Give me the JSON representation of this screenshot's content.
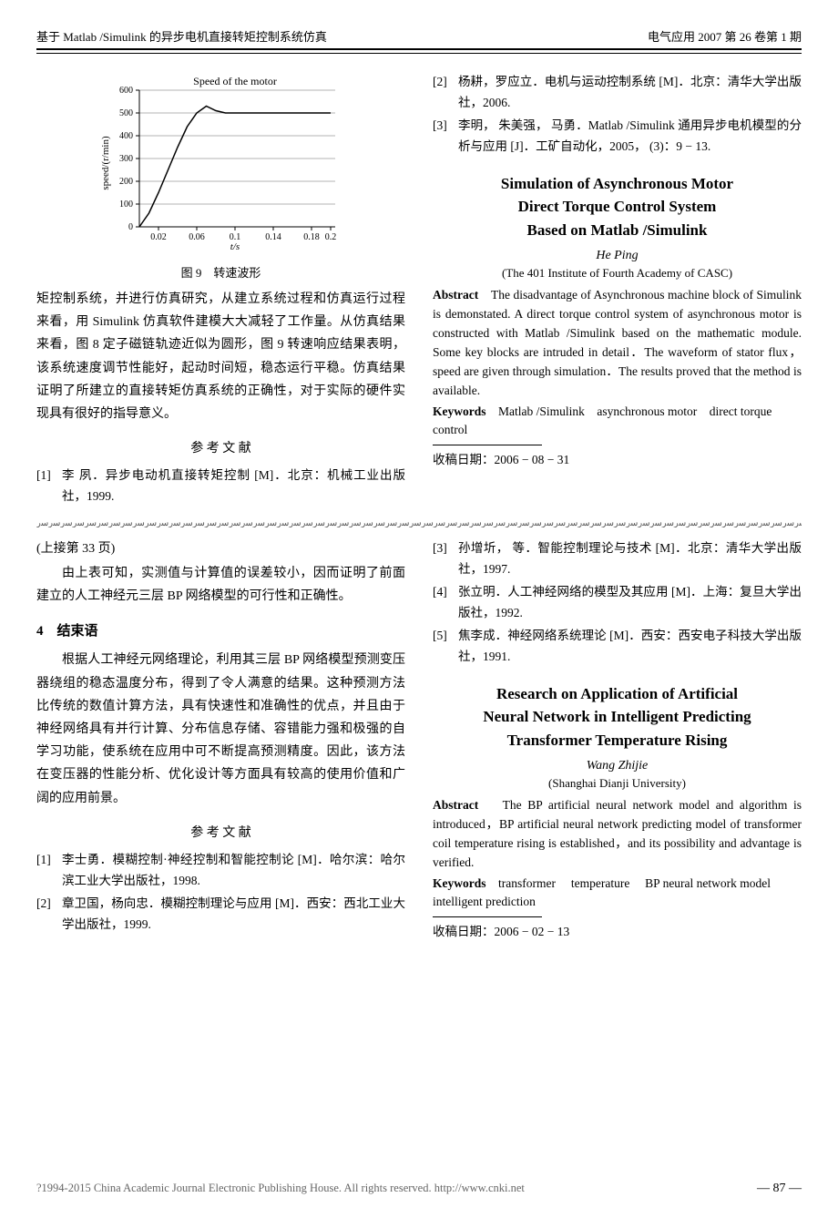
{
  "header": {
    "left": "基于 Matlab /Simulink 的异步电机直接转矩控制系统仿真",
    "right": "电气应用  2007 第 26 卷第 1 期"
  },
  "chart": {
    "type": "line",
    "title": "Speed of the motor",
    "xlabel": "t/s",
    "ylabel": "speed/(r/min)",
    "xlim": [
      0,
      0.2
    ],
    "ylim": [
      0,
      600
    ],
    "xticks": [
      0.02,
      0.06,
      0.1,
      0.14,
      0.18,
      0.2
    ],
    "yticks": [
      0,
      100,
      200,
      300,
      400,
      500,
      600
    ],
    "series": {
      "color": "#000000",
      "points": [
        [
          0,
          0
        ],
        [
          0.01,
          60
        ],
        [
          0.02,
          150
        ],
        [
          0.03,
          250
        ],
        [
          0.04,
          350
        ],
        [
          0.05,
          440
        ],
        [
          0.06,
          500
        ],
        [
          0.07,
          530
        ],
        [
          0.08,
          510
        ],
        [
          0.09,
          500
        ],
        [
          0.1,
          500
        ],
        [
          0.12,
          500
        ],
        [
          0.15,
          500
        ],
        [
          0.2,
          500
        ]
      ]
    },
    "background_color": "#ffffff",
    "axis_color": "#000000",
    "title_fontsize": 12,
    "label_fontsize": 11,
    "tick_fontsize": 10
  },
  "fig_caption": "图 9　转速波形",
  "article1": {
    "body": "矩控制系统，并进行仿真研究，从建立系统过程和仿真运行过程来看，用 Simulink 仿真软件建模大大减轻了工作量。从仿真结果来看，图 8 定子磁链轨迹近似为圆形，图 9 转速响应结果表明，该系统速度调节性能好，起动时间短，稳态运行平稳。仿真结果证明了所建立的直接转矩仿真系统的正确性，对于实际的硬件实现具有很好的指导意义。",
    "ref_heading": "参 考 文 献",
    "refs": [
      {
        "num": "[1]",
        "text": "李  夙．异步电动机直接转矩控制  [M]．北京：机械工业出版社，1999."
      },
      {
        "num": "[2]",
        "text": "杨耕，罗应立．电机与运动控制系统  [M]．北京：清华大学出版社，2006."
      },
      {
        "num": "[3]",
        "text": "李明， 朱美强， 马勇．Matlab /Simulink 通用异步电机模型的分析与应用  [J]．工矿自动化，2005，  (3)：9 − 13."
      }
    ],
    "en_title_l1": "Simulation of Asynchronous Motor",
    "en_title_l2": "Direct Torque Control System",
    "en_title_l3": "Based on Matlab /Simulink",
    "en_author": "He Ping",
    "en_affil": "(The 401 Institute of Fourth Academy of CASC)",
    "en_abstract_label": "Abstract",
    "en_abstract": "　The disadvantage of Asynchronous machine block of Simulink is demonstated. A direct torque control system of asynchronous motor is constructed with Matlab /Simulink based on the mathematic module. Some key blocks are intruded in detail．The waveform of stator flux，speed are given through simulation．The results proved that the method is available.",
    "en_keywords_label": "Keywords",
    "en_keywords": "　Matlab /Simulink　asynchronous motor　direct torque control",
    "recv_date": "收稿日期：2006 − 08 − 31"
  },
  "article2": {
    "cont_note": "(上接第 33 页)",
    "body1": "由上表可知，实测值与计算值的误差较小，因而证明了前面建立的人工神经元三层 BP 网络模型的可行性和正确性。",
    "sec_heading": "4　结束语",
    "body2": "根据人工神经元网络理论，利用其三层 BP 网络模型预测变压器绕组的稳态温度分布，得到了令人满意的结果。这种预测方法比传统的数值计算方法，具有快速性和准确性的优点，并且由于神经网络具有并行计算、分布信息存储、容错能力强和极强的自学习功能，使系统在应用中可不断提高预测精度。因此，该方法在变压器的性能分析、优化设计等方面具有较高的使用价值和广阔的应用前景。",
    "ref_heading": "参 考 文 献",
    "refs_left": [
      {
        "num": "[1]",
        "text": "李士勇．模糊控制·神经控制和智能控制论  [M]．哈尔滨：哈尔滨工业大学出版社，1998."
      },
      {
        "num": "[2]",
        "text": "章卫国，杨向忠．模糊控制理论与应用  [M]．西安：西北工业大学出版社，1999."
      }
    ],
    "refs_right": [
      {
        "num": "[3]",
        "text": "孙增圻， 等．智能控制理论与技术  [M]．北京：清华大学出版社，1997."
      },
      {
        "num": "[4]",
        "text": "张立明．人工神经网络的模型及其应用  [M]．上海：复旦大学出版社，1992."
      },
      {
        "num": "[5]",
        "text": "焦李成．神经网络系统理论  [M]．西安：西安电子科技大学出版社，1991."
      }
    ],
    "en_title_l1": "Research on Application of Artificial",
    "en_title_l2": "Neural Network in Intelligent Predicting",
    "en_title_l3": "Transformer Temperature Rising",
    "en_author": "Wang Zhijie",
    "en_affil": "(Shanghai Dianji University)",
    "en_abstract_label": "Abstract",
    "en_abstract": "　 The BP artificial neural network model and algorithm is introduced，BP artificial neural network predicting model of transformer coil temperature rising is established，and its possibility and advantage is verified.",
    "en_keywords_label": "Keywords",
    "en_keywords": "　transformer　 temperature　 BP neural network model　intelligent prediction",
    "recv_date": "收稿日期：2006 − 02 − 13"
  },
  "footer": {
    "copyright": "?1994-2015 China Academic Journal Electronic Publishing House. All rights reserved.    http://www.cnki.net",
    "page": "—  87  —"
  },
  "wavy": "ﺳﺭﺳﺭﺳﺭﺳﺭﺳﺭﺳﺭﺳﺭﺳﺭﺳﺭﺳﺭﺳﺭﺳﺭﺳﺭﺳﺭﺳﺭﺳﺭﺳﺭﺳﺭﺳﺭﺳﺭﺳﺭﺳﺭﺳﺭﺳﺭﺳﺭﺳﺭﺳﺭﺳﺭﺳﺭﺳﺭﺳﺭﺳﺭﺳﺭﺳﺭﺳﺭﺳﺭﺳﺭﺳﺭﺳﺭﺳﺭﺳﺭﺳﺭﺳﺭﺳﺭﺳﺭﺳﺭﺳﺭﺳﺭﺳﺭﺳﺭﺳﺭﺳﺭﺳﺭﺳﺭﺳﺭﺳﺭﺳﺭﺳﺭﺳﺭﺳﺭﺳﺭﺳﺭﺳﺭﺳﺭﺳﺭﺳﺭﺳﺭﺳﺭﺳﺭﺳﺭﺳﺭﺳﺭﺳﺭﺳﺭﺳﺭﺳﺭﺳﺭﺳﺭﺳﺭﺳﺭﺳﺭﺳﺭﺳﺭﺳﺭﺳﺭﺳﺭﺳﺭﺳﺭﺳﺭﺳﺭﺳﺭﺳﺭﺳﺭﺳﺭﺳﺭﺳﺭﺳﺭﺳﺭﺳﺭﺳﺭﺳﺭﺳﺭﺳﺭﺳﺭﺳﺭﺳﺭﺳﺭﺳﺭﺳﺭﺳﺭﺳﺭﺳﺭﺳﺭﺳﺭﺳﺭﺳﺭﺳﺭﺳﺭﺳﺭﺳﺭﺳﺭ"
}
